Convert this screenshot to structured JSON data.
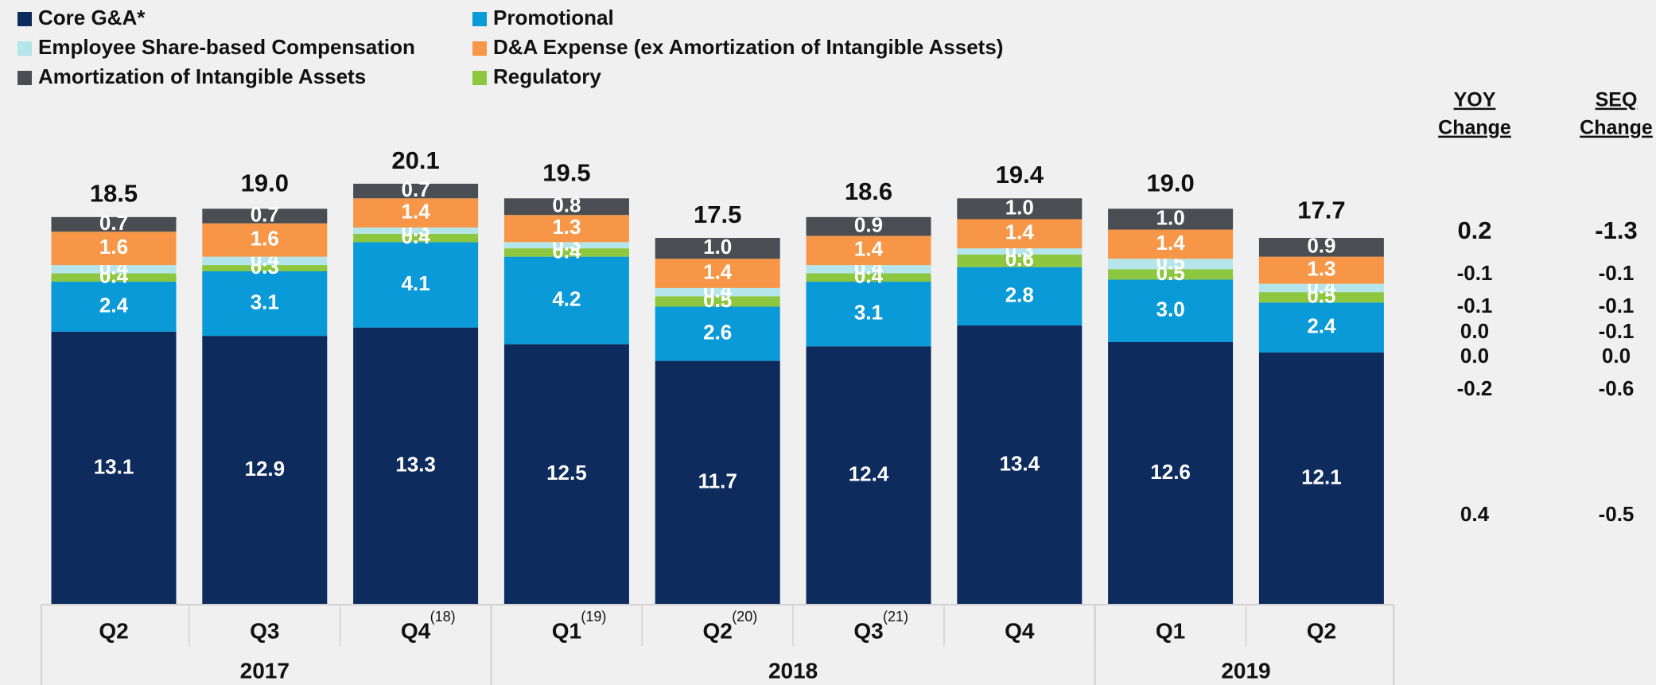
{
  "chart_data": {
    "type": "stacked_bar",
    "categories": [
      "Q2",
      "Q3",
      "Q4",
      "Q1",
      "Q2",
      "Q3",
      "Q4",
      "Q1",
      "Q2"
    ],
    "footnotes": [
      null,
      null,
      "(18)",
      "(19)",
      "(20)",
      "(21)",
      null,
      null,
      null
    ],
    "years": [
      "2017",
      "2017",
      "2017",
      "2018",
      "2018",
      "2018",
      "2018",
      "2019",
      "2019"
    ],
    "ylim": [
      0,
      21
    ],
    "series": [
      {
        "name": "Core G&A*",
        "color": "#0d2b5c",
        "values": [
          13.1,
          12.9,
          13.3,
          12.5,
          11.7,
          12.4,
          13.4,
          12.6,
          12.1
        ],
        "value_labels": [
          "13.1",
          "12.9",
          "13.3",
          "12.5",
          "11.7",
          "12.4",
          "13.4",
          "12.6",
          "12.1"
        ]
      },
      {
        "name": "Promotional",
        "color": "#0a9ad8",
        "values": [
          2.4,
          3.1,
          4.1,
          4.2,
          2.6,
          3.1,
          2.8,
          3.0,
          2.4
        ],
        "value_labels": [
          "2.4",
          "3.1",
          "4.1",
          "4.2",
          "2.6",
          "3.1",
          "2.8",
          "3.0",
          "2.4"
        ]
      },
      {
        "name": "Regulatory",
        "color": "#8dc63f",
        "values": [
          0.4,
          0.3,
          0.4,
          0.4,
          0.5,
          0.4,
          0.6,
          0.5,
          0.5
        ],
        "value_labels": [
          "0.4",
          "0.3",
          "0.4",
          "0.4",
          "0.5",
          "0.4",
          "0.6",
          "0.5",
          "0.5"
        ]
      },
      {
        "name": "Employee Share-based Compensation",
        "color": "#b3e5ea",
        "values": [
          0.4,
          0.4,
          0.3,
          0.3,
          0.4,
          0.4,
          0.3,
          0.5,
          0.4
        ],
        "value_labels": [
          "0.4",
          "0.4",
          "0.3",
          "0.3",
          "0.4",
          "0.4",
          "0.3",
          "0.5",
          "0.4"
        ]
      },
      {
        "name": "D&A Expense (ex Amortization of Intangible Assets)",
        "color": "#f79646",
        "values": [
          1.6,
          1.6,
          1.4,
          1.3,
          1.4,
          1.4,
          1.4,
          1.4,
          1.3
        ],
        "value_labels": [
          "1.6",
          "1.6",
          "1.4",
          "1.3",
          "1.4",
          "1.4",
          "1.4",
          "1.4",
          "1.3"
        ]
      },
      {
        "name": "Amortization of Intangible Assets",
        "color": "#4a4d52",
        "values": [
          0.7,
          0.7,
          0.7,
          0.8,
          1.0,
          0.9,
          1.0,
          1.0,
          0.9
        ],
        "value_labels": [
          "0.7",
          "0.7",
          "0.7",
          "0.8",
          "1.0",
          "0.9",
          "1.0",
          "1.0",
          "0.9"
        ]
      }
    ],
    "totals": {
      "values": [
        18.5,
        19.0,
        20.1,
        19.5,
        17.5,
        18.6,
        19.4,
        19.0,
        17.7
      ],
      "value_labels": [
        "18.5",
        "19.0",
        "20.1",
        "19.5",
        "17.5",
        "18.6",
        "19.4",
        "19.0",
        "17.7"
      ]
    },
    "change_table": {
      "headers": [
        [
          "YOY",
          "Change"
        ],
        [
          "SEQ",
          "Change"
        ]
      ],
      "rows": [
        [
          "0.2",
          "-1.3"
        ],
        [
          "-0.1",
          "-0.1"
        ],
        [
          "-0.1",
          "-0.1"
        ],
        [
          "0.0",
          "-0.1"
        ],
        [
          "0.0",
          "0.0"
        ],
        [
          "-0.2",
          "-0.6"
        ],
        [
          "0.4",
          "-0.5"
        ]
      ]
    }
  }
}
